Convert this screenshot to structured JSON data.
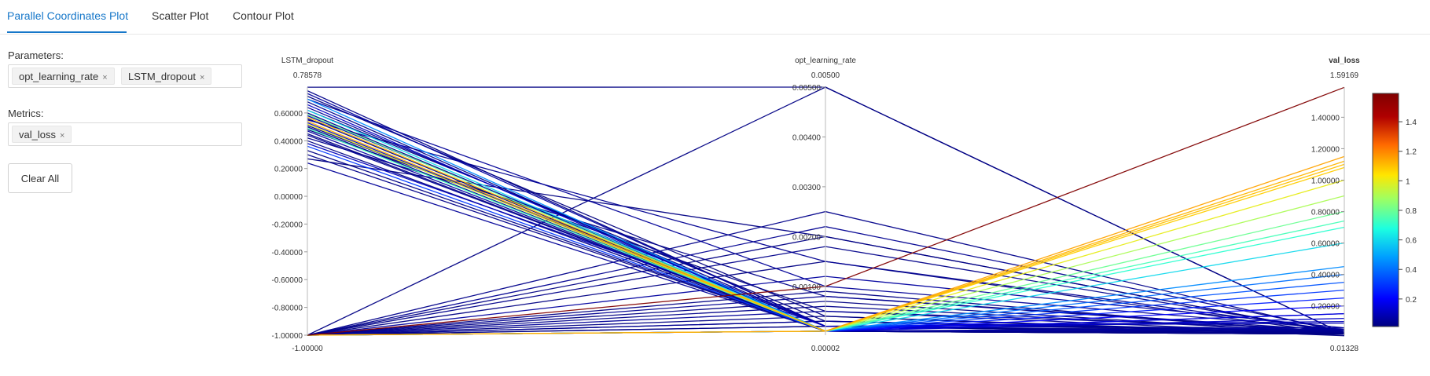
{
  "tabs": [
    {
      "label": "Parallel Coordinates Plot",
      "active": true
    },
    {
      "label": "Scatter Plot",
      "active": false
    },
    {
      "label": "Contour Plot",
      "active": false
    }
  ],
  "sidebar": {
    "parameters_label": "Parameters:",
    "parameters": [
      "opt_learning_rate",
      "LSTM_dropout"
    ],
    "metrics_label": "Metrics:",
    "metrics": [
      "val_loss"
    ],
    "clear_label": "Clear All",
    "remove_glyph": "×"
  },
  "chart_data": {
    "type": "parallel_coordinates",
    "axes": [
      {
        "name": "LSTM_dropout",
        "max_label": "0.78578",
        "min_label": "-1.00000",
        "range": [
          -1.0,
          0.78578
        ],
        "ticks": [
          "0.60000",
          "0.40000",
          "0.20000",
          "0.00000",
          "-0.20000",
          "-0.40000",
          "-0.60000",
          "-0.80000",
          "-1.00000"
        ],
        "title_color": "#333333"
      },
      {
        "name": "opt_learning_rate",
        "max_label": "0.00500",
        "min_label": "0.00002",
        "range": [
          2e-05,
          0.005
        ],
        "ticks": [
          "0.00500",
          "0.00400",
          "0.00300",
          "0.00200",
          "0.00100"
        ],
        "title_color": "#333333"
      },
      {
        "name": "val_loss",
        "max_label": "1.59169",
        "min_label": "0.01328",
        "range": [
          0.01328,
          1.59169
        ],
        "ticks": [
          "1.40000",
          "1.20000",
          "1.00000",
          "0.80000",
          "0.60000",
          "0.40000",
          "0.20000"
        ],
        "title_color": "#1a7f1a"
      }
    ],
    "colorbar": {
      "ticks": [
        "1.4",
        "1.2",
        "1",
        "0.8",
        "0.6",
        "0.4",
        "0.2"
      ],
      "range": [
        0.01328,
        1.59169
      ],
      "colors": [
        "#00007f",
        "#0000ff",
        "#00a0ff",
        "#1cffe0",
        "#a0ff60",
        "#ffe600",
        "#ff6a00",
        "#b00000",
        "#800000"
      ]
    },
    "lines": [
      [
        0.785,
        0.005,
        0.02
      ],
      [
        0.76,
        0.0002,
        0.03
      ],
      [
        0.74,
        0.0002,
        0.06
      ],
      [
        0.72,
        0.0004,
        0.01
      ],
      [
        0.7,
        0.001,
        0.05
      ],
      [
        0.68,
        0.0001,
        0.02
      ],
      [
        0.66,
        0.0001,
        0.12
      ],
      [
        0.64,
        0.0002,
        0.04
      ],
      [
        0.62,
        0.0003,
        0.02
      ],
      [
        0.6,
        0.0001,
        0.03
      ],
      [
        0.58,
        0.0002,
        0.09
      ],
      [
        0.56,
        0.0001,
        0.02
      ],
      [
        0.55,
        0.0015,
        0.04
      ],
      [
        0.53,
        0.0001,
        0.15
      ],
      [
        0.51,
        0.0002,
        0.02
      ],
      [
        0.5,
        0.0001,
        0.03
      ],
      [
        0.48,
        0.0005,
        0.02
      ],
      [
        0.47,
        0.0001,
        0.06
      ],
      [
        0.45,
        0.0001,
        0.02
      ],
      [
        0.44,
        0.0001,
        0.04
      ],
      [
        0.42,
        0.0008,
        0.03
      ],
      [
        0.4,
        0.0001,
        0.02
      ],
      [
        0.38,
        0.0002,
        0.1
      ],
      [
        0.36,
        0.0001,
        0.3
      ],
      [
        0.33,
        0.0001,
        0.02
      ],
      [
        0.3,
        0.0001,
        0.03
      ],
      [
        0.27,
        0.002,
        0.02
      ],
      [
        0.24,
        0.0001,
        0.05
      ],
      [
        0.7,
        0.0001,
        0.45
      ],
      [
        0.62,
        0.0001,
        0.6
      ],
      [
        0.59,
        0.0001,
        0.8
      ],
      [
        0.57,
        0.0001,
        1.1
      ],
      [
        0.54,
        0.0001,
        1.12
      ],
      [
        0.52,
        0.0001,
        1.0
      ],
      [
        0.49,
        0.0001,
        0.74
      ],
      [
        -1.0,
        0.005,
        0.02
      ],
      [
        -1.0,
        0.0022,
        0.04
      ],
      [
        -1.0,
        0.002,
        0.02
      ],
      [
        -1.0,
        0.0018,
        0.03
      ],
      [
        -1.0,
        0.0012,
        0.06
      ],
      [
        -1.0,
        0.001,
        1.59
      ],
      [
        -1.0,
        0.0009,
        0.02
      ],
      [
        -1.0,
        0.0008,
        0.04
      ],
      [
        -1.0,
        0.0007,
        0.02
      ],
      [
        -1.0,
        0.0006,
        0.03
      ],
      [
        -1.0,
        0.0005,
        0.05
      ],
      [
        -1.0,
        0.0004,
        0.02
      ],
      [
        -1.0,
        0.0003,
        0.03
      ],
      [
        -1.0,
        0.0002,
        0.02
      ],
      [
        -1.0,
        0.0001,
        0.05
      ],
      [
        -1.0,
        0.0001,
        0.25
      ],
      [
        -1.0,
        0.0001,
        0.15
      ],
      [
        -1.0,
        0.0001,
        0.2
      ],
      [
        -1.0,
        0.0002,
        0.02
      ],
      [
        -1.0,
        0.0003,
        0.04
      ],
      [
        -1.0,
        0.0001,
        1.15
      ],
      [
        -1.0,
        0.0001,
        1.08
      ],
      [
        -1.0,
        0.0001,
        0.9
      ],
      [
        -1.0,
        0.0001,
        0.7
      ],
      [
        -1.0,
        0.0001,
        0.4
      ],
      [
        -1.0,
        0.0001,
        0.35
      ],
      [
        -1.0,
        0.0015,
        0.02
      ],
      [
        -1.0,
        0.0025,
        0.03
      ]
    ]
  }
}
